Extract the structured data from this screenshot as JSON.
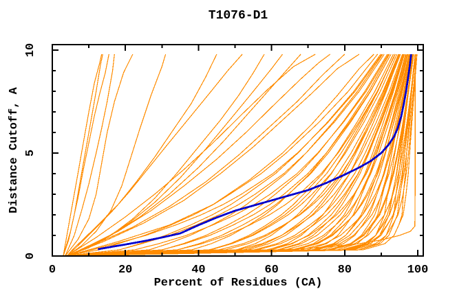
{
  "chart_data": {
    "type": "line",
    "title": "T1076-D1",
    "xlabel": "Percent of Residues (CA)",
    "ylabel": "Distance Cutoff, A",
    "xlim": [
      0,
      101.5
    ],
    "ylim": [
      0,
      10.3
    ],
    "x_major_ticks": [
      0,
      20,
      40,
      60,
      80,
      100
    ],
    "x_minor_ticks": [
      10,
      30,
      50,
      70,
      90
    ],
    "y_major_ticks": [
      0,
      5,
      10
    ],
    "y_minor_ticks": [
      1,
      2,
      3,
      4,
      6,
      7,
      8,
      9
    ],
    "grid": false,
    "legend_position": "none",
    "colors": {
      "model_lines": "#FF8C00",
      "highlight_line": "#0000CD",
      "axis": "#000000",
      "background": "#FFFFFF"
    },
    "highlight_series": {
      "name": "highlighted-model",
      "points": [
        [
          12.5,
          0.33
        ],
        [
          16,
          0.44
        ],
        [
          20,
          0.56
        ],
        [
          25,
          0.72
        ],
        [
          30,
          0.9
        ],
        [
          35,
          1.1
        ],
        [
          40,
          1.5
        ],
        [
          45,
          1.87
        ],
        [
          50,
          2.2
        ],
        [
          55,
          2.45
        ],
        [
          60,
          2.7
        ],
        [
          65,
          2.95
        ],
        [
          70,
          3.2
        ],
        [
          75,
          3.55
        ],
        [
          80,
          3.95
        ],
        [
          84,
          4.3
        ],
        [
          87,
          4.6
        ],
        [
          90,
          5.0
        ],
        [
          92,
          5.4
        ],
        [
          93.5,
          5.8
        ],
        [
          94.5,
          6.2
        ],
        [
          95.5,
          6.8
        ],
        [
          96.2,
          7.4
        ],
        [
          96.8,
          8.0
        ],
        [
          97.3,
          8.6
        ],
        [
          97.8,
          9.2
        ],
        [
          98.2,
          9.8
        ]
      ]
    },
    "low_outlier_series": {
      "points": [
        [
          6,
          0
        ],
        [
          20,
          0.1
        ],
        [
          40,
          0.18
        ],
        [
          55,
          0.25
        ],
        [
          66,
          0.33
        ],
        [
          76,
          0.45
        ],
        [
          84,
          0.6
        ],
        [
          90,
          0.78
        ],
        [
          95,
          1.0
        ],
        [
          98,
          1.2
        ],
        [
          99.2,
          1.45
        ],
        [
          99.3,
          3.5
        ],
        [
          99.3,
          9.8
        ]
      ]
    },
    "left_outlier_series": [
      {
        "points": [
          [
            3,
            0
          ],
          [
            4,
            1
          ],
          [
            5.5,
            2.5
          ],
          [
            7,
            4
          ],
          [
            8.5,
            5.5
          ],
          [
            10,
            7
          ],
          [
            11.5,
            8.4
          ],
          [
            13,
            9.4
          ],
          [
            13.5,
            9.8
          ]
        ]
      },
      {
        "points": [
          [
            3,
            0
          ],
          [
            5,
            1.2
          ],
          [
            7,
            2.8
          ],
          [
            8.5,
            4.2
          ],
          [
            10,
            5.5
          ],
          [
            11.5,
            6.8
          ],
          [
            13,
            7.9
          ],
          [
            14.5,
            8.9
          ],
          [
            15.5,
            9.8
          ]
        ]
      },
      {
        "points": [
          [
            3.5,
            0
          ],
          [
            6,
            1
          ],
          [
            8,
            2.2
          ],
          [
            10,
            3.5
          ],
          [
            12,
            5
          ],
          [
            13.5,
            6.2
          ],
          [
            15,
            7.5
          ],
          [
            16.5,
            9
          ],
          [
            17,
            9.8
          ]
        ]
      },
      {
        "points": [
          [
            3.5,
            0
          ],
          [
            7,
            0.8
          ],
          [
            10,
            1.8
          ],
          [
            12,
            3
          ],
          [
            13.5,
            4.5
          ],
          [
            15,
            6
          ],
          [
            17,
            7.5
          ],
          [
            19.5,
            8.9
          ],
          [
            22,
            9.8
          ]
        ]
      },
      {
        "points": [
          [
            4,
            0
          ],
          [
            8,
            0.5
          ],
          [
            12,
            1.2
          ],
          [
            16,
            2.2
          ],
          [
            19,
            3.4
          ],
          [
            21.5,
            4.8
          ],
          [
            24,
            6.2
          ],
          [
            27,
            7.8
          ],
          [
            30,
            9.2
          ],
          [
            31,
            9.8
          ]
        ]
      },
      {
        "points": [
          [
            3,
            0
          ],
          [
            4.5,
            0.8
          ],
          [
            6,
            2
          ],
          [
            7.5,
            3.5
          ],
          [
            9,
            5
          ],
          [
            10.5,
            6.5
          ],
          [
            12,
            8
          ],
          [
            13.2,
            9.3
          ],
          [
            13.8,
            9.8
          ]
        ]
      }
    ],
    "mid_series": [
      {
        "points": [
          [
            4,
            0
          ],
          [
            6,
            0.4
          ],
          [
            9,
            0.9
          ],
          [
            13,
            1.6
          ],
          [
            18,
            2.5
          ],
          [
            23,
            3.6
          ],
          [
            28,
            4.8
          ],
          [
            33,
            6.1
          ],
          [
            38,
            7.4
          ],
          [
            42,
            8.7
          ],
          [
            45,
            9.8
          ]
        ]
      },
      {
        "points": [
          [
            4,
            0
          ],
          [
            7,
            0.5
          ],
          [
            11,
            1.2
          ],
          [
            16,
            2.1
          ],
          [
            21,
            3.1
          ],
          [
            26,
            4.2
          ],
          [
            31,
            5.3
          ],
          [
            37,
            6.6
          ],
          [
            43,
            7.9
          ],
          [
            48,
            9.0
          ],
          [
            52,
            9.8
          ]
        ]
      },
      {
        "points": [
          [
            4,
            0
          ],
          [
            10,
            0.4
          ],
          [
            16,
            1.0
          ],
          [
            22,
            1.8
          ],
          [
            28,
            2.8
          ],
          [
            34,
            4.0
          ],
          [
            40,
            5.3
          ],
          [
            46,
            6.6
          ],
          [
            51,
            7.8
          ],
          [
            55,
            8.9
          ],
          [
            58,
            9.8
          ]
        ]
      },
      {
        "points": [
          [
            4,
            0
          ],
          [
            8,
            0.3
          ],
          [
            14,
            0.8
          ],
          [
            21,
            1.6
          ],
          [
            28,
            2.6
          ],
          [
            35,
            3.8
          ],
          [
            42,
            5.2
          ],
          [
            49,
            6.7
          ],
          [
            55,
            8.0
          ],
          [
            60,
            9.1
          ],
          [
            63,
            9.8
          ]
        ]
      },
      {
        "points": [
          [
            4,
            0
          ],
          [
            9,
            0.4
          ],
          [
            16,
            1.0
          ],
          [
            24,
            1.9
          ],
          [
            32,
            3.0
          ],
          [
            40,
            4.3
          ],
          [
            47,
            5.6
          ],
          [
            54,
            7.0
          ],
          [
            60,
            8.2
          ],
          [
            65,
            9.2
          ],
          [
            68,
            9.8
          ]
        ]
      },
      {
        "points": [
          [
            4,
            0
          ],
          [
            12,
            0.9
          ],
          [
            20,
            1.9
          ],
          [
            28,
            3.0
          ],
          [
            36,
            4.2
          ],
          [
            44,
            5.5
          ],
          [
            52,
            6.9
          ],
          [
            59,
            8.1
          ],
          [
            66,
            9.2
          ],
          [
            72,
            9.8
          ]
        ]
      },
      {
        "points": [
          [
            4,
            0
          ],
          [
            10,
            0.5
          ],
          [
            18,
            1.2
          ],
          [
            27,
            2.2
          ],
          [
            36,
            3.4
          ],
          [
            45,
            4.7
          ],
          [
            53,
            6.0
          ],
          [
            61,
            7.4
          ],
          [
            68,
            8.6
          ],
          [
            73,
            9.4
          ],
          [
            76,
            9.8
          ]
        ]
      },
      {
        "points": [
          [
            4,
            0
          ],
          [
            12,
            0.6
          ],
          [
            22,
            1.4
          ],
          [
            32,
            2.4
          ],
          [
            42,
            3.6
          ],
          [
            51,
            4.9
          ],
          [
            59,
            6.2
          ],
          [
            67,
            7.5
          ],
          [
            74,
            8.8
          ],
          [
            80,
            9.8
          ]
        ]
      },
      {
        "points": [
          [
            4,
            0
          ],
          [
            14,
            0.7
          ],
          [
            25,
            1.6
          ],
          [
            36,
            2.7
          ],
          [
            46,
            4.0
          ],
          [
            55,
            5.3
          ],
          [
            63,
            6.6
          ],
          [
            71,
            7.9
          ],
          [
            78,
            9.1
          ],
          [
            84,
            9.8
          ]
        ]
      },
      {
        "points": [
          [
            4,
            0
          ],
          [
            18,
            0.7
          ],
          [
            32,
            1.5
          ],
          [
            44,
            2.5
          ],
          [
            54,
            3.7
          ],
          [
            63,
            5.0
          ],
          [
            71,
            6.4
          ],
          [
            78,
            7.8
          ],
          [
            84,
            9.1
          ],
          [
            88,
            9.8
          ]
        ]
      }
    ],
    "bundle": {
      "y_grid": [
        0,
        0.3,
        0.6,
        1,
        1.5,
        2,
        2.5,
        3,
        4,
        5,
        6.5,
        8,
        9.8
      ],
      "x_low": [
        3,
        8,
        14,
        22,
        30,
        37,
        43,
        48,
        57,
        64,
        73,
        81,
        89
      ],
      "x_high": [
        4.5,
        85,
        91,
        93.5,
        94.8,
        96,
        96.4,
        96.8,
        97.4,
        97.8,
        98.4,
        99,
        99.8
      ],
      "curves": [
        [
          0.02,
          0.05
        ],
        [
          0.07,
          -0.04
        ],
        [
          0.11,
          0.03
        ],
        [
          0.15,
          -0.02
        ],
        [
          0.19,
          0.06
        ],
        [
          0.23,
          -0.05
        ],
        [
          0.27,
          0.02
        ],
        [
          0.31,
          -0.03
        ],
        [
          0.35,
          0.05
        ],
        [
          0.39,
          -0.06
        ],
        [
          0.43,
          0.03
        ],
        [
          0.47,
          -0.02
        ],
        [
          0.5,
          0.06
        ],
        [
          0.53,
          -0.05
        ],
        [
          0.56,
          0.02
        ],
        [
          0.59,
          -0.04
        ],
        [
          0.62,
          0.05
        ],
        [
          0.65,
          -0.03
        ],
        [
          0.68,
          0.02
        ],
        [
          0.7,
          -0.05
        ],
        [
          0.72,
          0.04
        ],
        [
          0.74,
          -0.02
        ],
        [
          0.76,
          0.05
        ],
        [
          0.78,
          -0.04
        ],
        [
          0.8,
          0.03
        ],
        [
          0.82,
          -0.05
        ],
        [
          0.84,
          0.02
        ],
        [
          0.86,
          -0.03
        ],
        [
          0.875,
          0.04
        ],
        [
          0.89,
          -0.02
        ],
        [
          0.905,
          0.05
        ],
        [
          0.92,
          -0.04
        ],
        [
          0.93,
          0.03
        ],
        [
          0.94,
          -0.02
        ],
        [
          0.95,
          0.04
        ],
        [
          0.96,
          -0.03
        ],
        [
          0.97,
          0.02
        ],
        [
          0.98,
          -0.02
        ],
        [
          0.99,
          0.03
        ],
        [
          1.0,
          0.0
        ],
        [
          0.34,
          0.0
        ],
        [
          0.45,
          0.01
        ],
        [
          0.52,
          -0.01
        ],
        [
          0.575,
          0.02
        ],
        [
          0.63,
          -0.02
        ],
        [
          0.665,
          0.01
        ],
        [
          0.71,
          -0.01
        ],
        [
          0.745,
          0.02
        ],
        [
          0.775,
          -0.02
        ],
        [
          0.81,
          0.01
        ],
        [
          0.835,
          -0.01
        ],
        [
          0.865,
          0.02
        ],
        [
          0.895,
          -0.02
        ],
        [
          0.925,
          0.01
        ],
        [
          0.955,
          -0.01
        ]
      ]
    }
  }
}
